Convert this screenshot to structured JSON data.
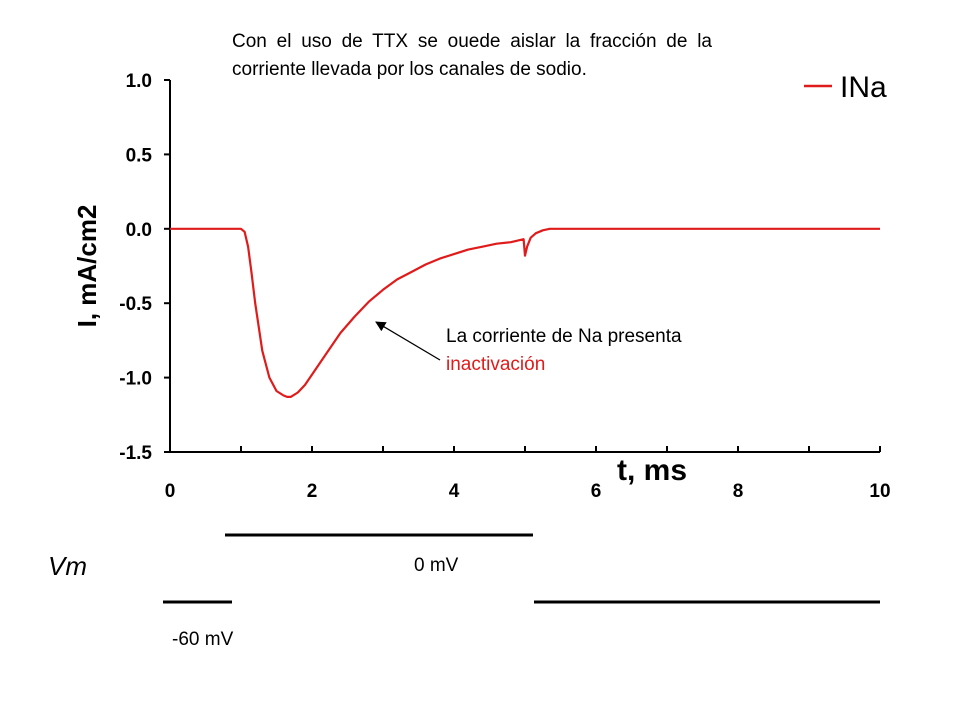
{
  "annotation_top": "Con el uso de TTX se ouede aislar la fracción de la corriente llevada por los canales de sodio.",
  "annotation_arrow": {
    "line1": "La corriente de Na presenta",
    "line2": "inactivación"
  },
  "colors": {
    "trace": "#e01b1b",
    "text": "#000000",
    "highlight": "#e01b1b"
  },
  "chart_data": {
    "type": "line",
    "title": "",
    "xlabel": "t, ms",
    "ylabel": "I, mA/cm2",
    "xlim": [
      0,
      10
    ],
    "ylim": [
      -1.5,
      1.0
    ],
    "x_ticks": [
      "0",
      "2",
      "4",
      "6",
      "8",
      "10"
    ],
    "y_ticks": [
      "1.0",
      "0.5",
      "0.0",
      "-0.5",
      "-1.0",
      "-1.5"
    ],
    "grid": false,
    "legend_position": "top-right",
    "series": [
      {
        "name": "INa",
        "x": [
          0,
          1.0,
          1.05,
          1.1,
          1.15,
          1.2,
          1.3,
          1.4,
          1.5,
          1.6,
          1.65,
          1.7,
          1.8,
          1.9,
          2.0,
          2.2,
          2.4,
          2.6,
          2.8,
          3.0,
          3.2,
          3.4,
          3.6,
          3.8,
          4.0,
          4.2,
          4.4,
          4.6,
          4.8,
          4.98,
          5.0,
          5.03,
          5.08,
          5.15,
          5.25,
          5.35,
          5.4,
          6.0,
          8.0,
          10.0
        ],
        "y": [
          0,
          0,
          -0.02,
          -0.12,
          -0.3,
          -0.5,
          -0.82,
          -1.0,
          -1.09,
          -1.12,
          -1.13,
          -1.13,
          -1.1,
          -1.05,
          -0.98,
          -0.84,
          -0.7,
          -0.59,
          -0.49,
          -0.41,
          -0.34,
          -0.29,
          -0.24,
          -0.2,
          -0.17,
          -0.14,
          -0.12,
          -0.1,
          -0.09,
          -0.07,
          -0.18,
          -0.12,
          -0.06,
          -0.03,
          -0.01,
          0,
          0,
          0,
          0,
          0
        ]
      }
    ]
  },
  "voltage_protocol": {
    "label": "Vm",
    "holding_label": "-60 mV",
    "step_label": "0 mV"
  }
}
